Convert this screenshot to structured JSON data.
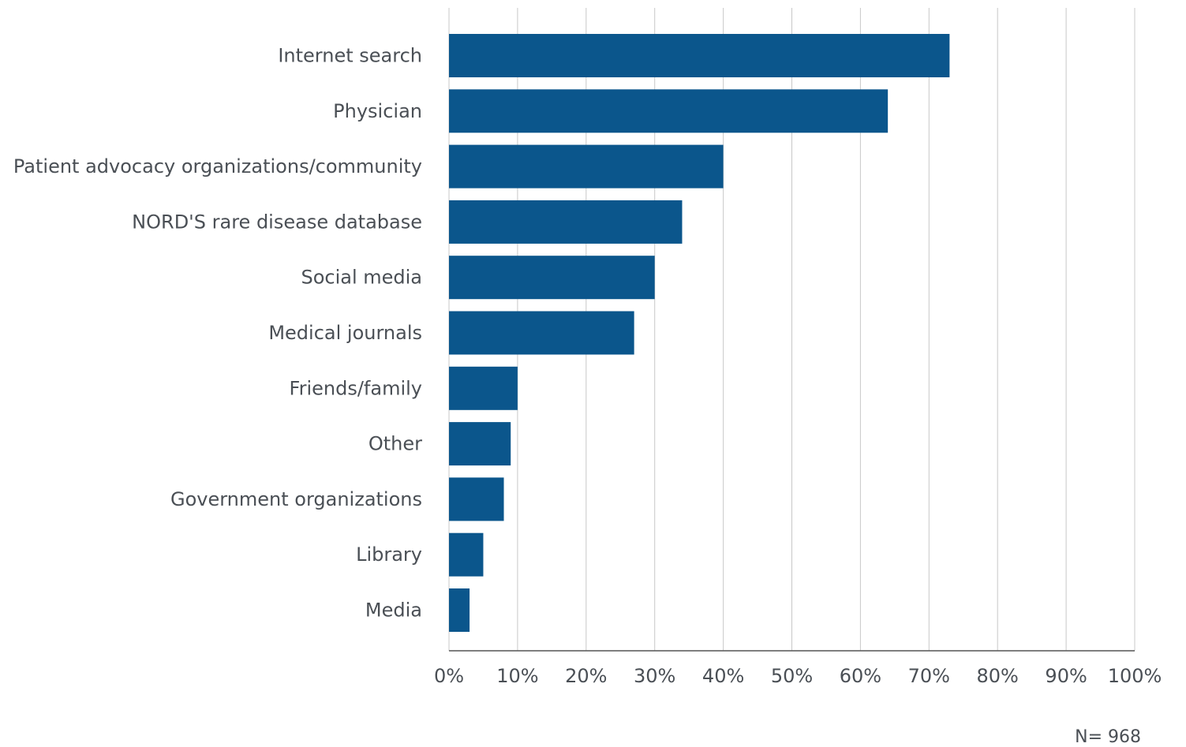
{
  "chart_data": {
    "type": "bar",
    "orientation": "horizontal",
    "categories": [
      "Internet search",
      "Physician",
      "Patient advocacy organizations/community",
      "NORD'S rare disease database",
      "Social media",
      "Medical journals",
      "Friends/family",
      "Other",
      "Government organizations",
      "Library",
      "Media"
    ],
    "values": [
      73,
      64,
      40,
      34,
      30,
      27,
      10,
      9,
      8,
      5,
      3
    ],
    "xlim": [
      0,
      100
    ],
    "x_ticks": [
      "0%",
      "10%",
      "20%",
      "30%",
      "40%",
      "50%",
      "60%",
      "70%",
      "80%",
      "90%",
      "100%"
    ],
    "grid": "vertical",
    "bar_color": "#0b568c",
    "grid_color": "#c8c8c8",
    "axis_color": "#555555",
    "note": "N= 968"
  }
}
